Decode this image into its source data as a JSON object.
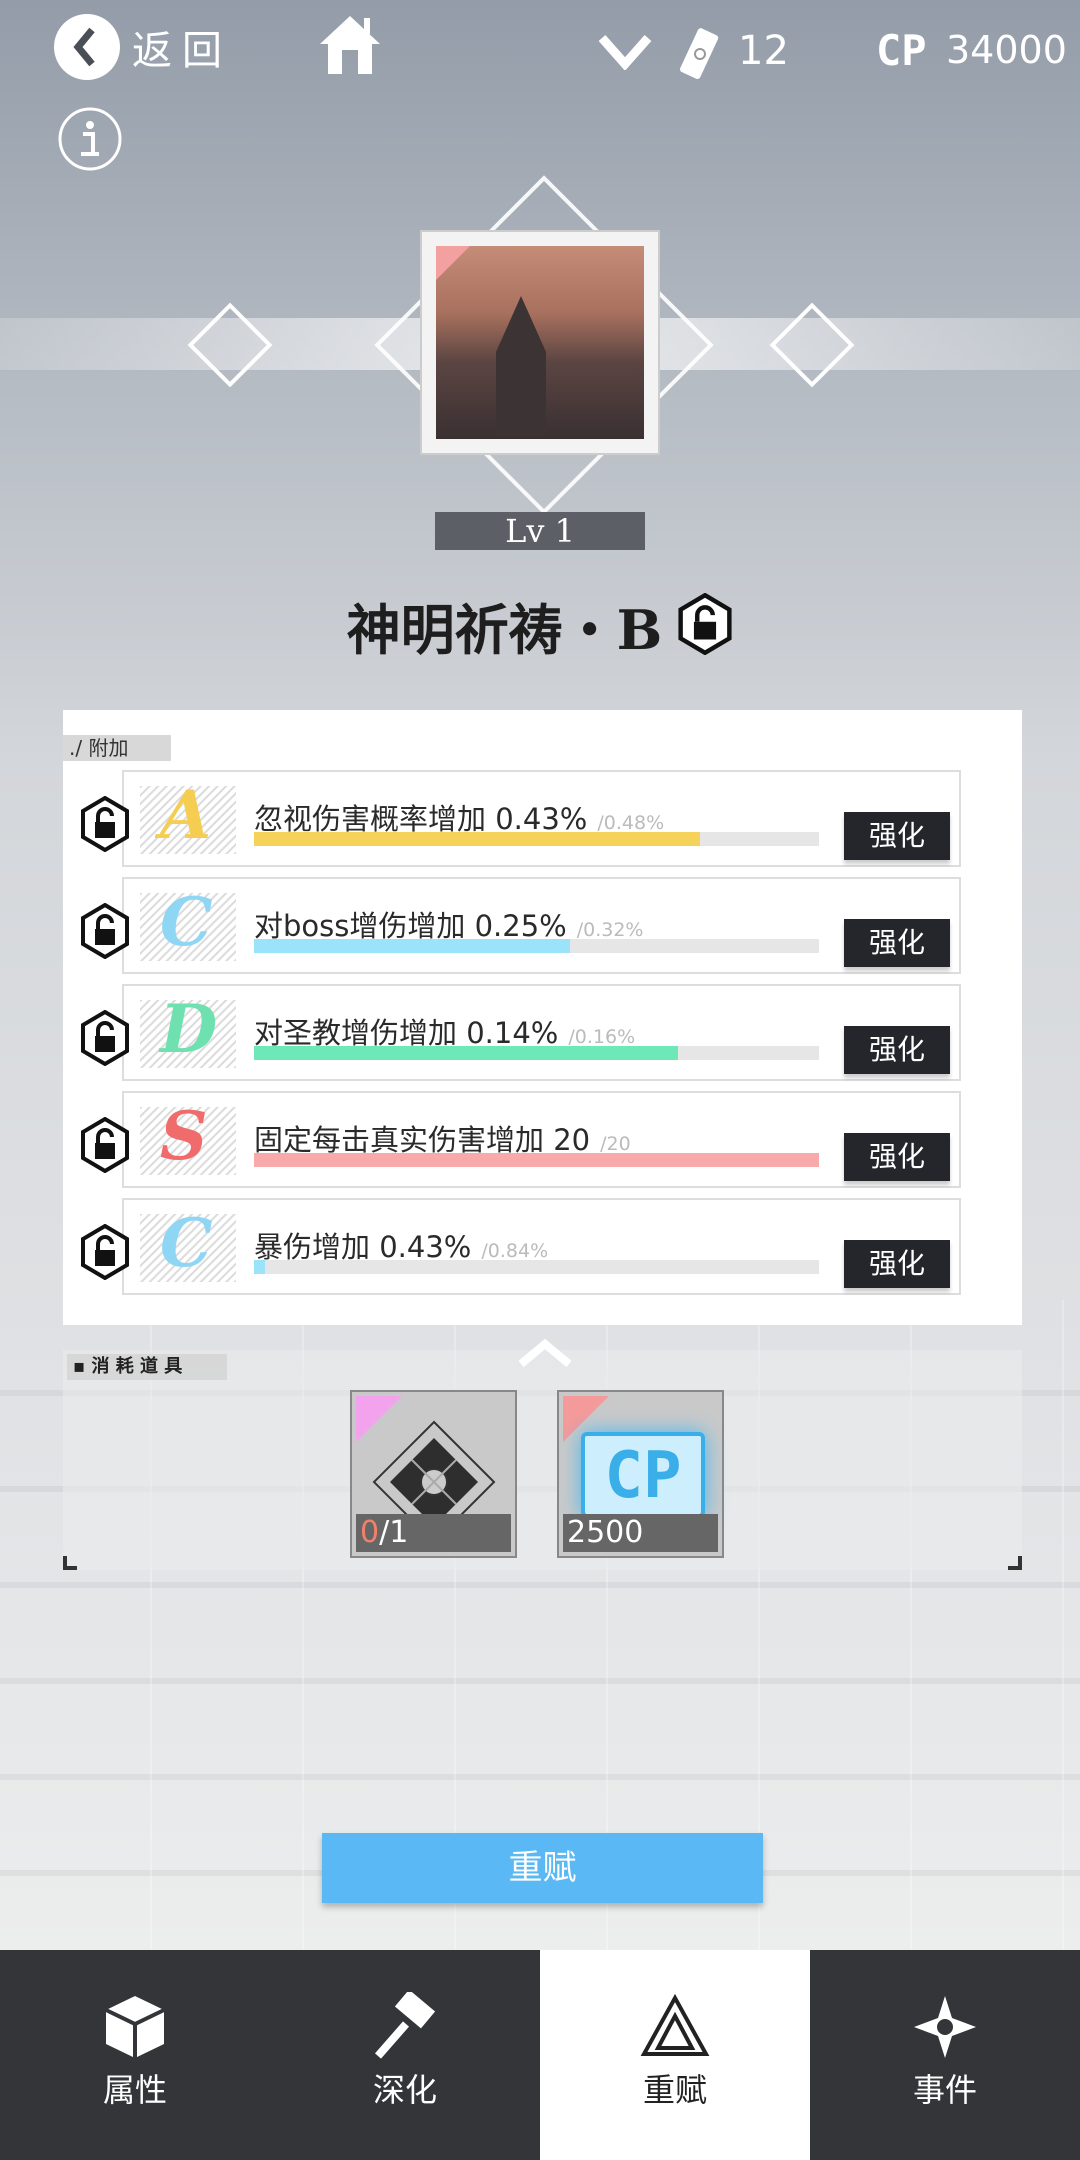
{
  "topbar": {
    "back_label": "返回",
    "tickets": "12",
    "cp_logo": "CP",
    "cp_amount": "34000"
  },
  "card": {
    "level": "Lv 1",
    "title": "神明祈祷・B"
  },
  "attach": {
    "section_label": "./ 附加",
    "rows": [
      {
        "grade": "A",
        "grade_color": "#f5cd50",
        "text": "忽视伤害概率增加 0.43%",
        "max": "/0.48%",
        "fill": 0.79,
        "bar_color": "#f5d35a",
        "button": "强化"
      },
      {
        "grade": "C",
        "grade_color": "#8fd6f5",
        "text": "对boss增伤增加 0.25%",
        "max": "/0.32%",
        "fill": 0.56,
        "bar_color": "#9be3fb",
        "button": "强化"
      },
      {
        "grade": "D",
        "grade_color": "#6fe0b0",
        "text": "对圣教增伤增加 0.14%",
        "max": "/0.16%",
        "fill": 0.75,
        "bar_color": "#6ee8b6",
        "button": "强化"
      },
      {
        "grade": "S",
        "grade_color": "#f06b6b",
        "text": "固定每击真实伤害增加 20",
        "max": "/20",
        "fill": 1.0,
        "bar_color": "#f8aaaa",
        "button": "强化"
      },
      {
        "grade": "C",
        "grade_color": "#8fd6f5",
        "text": "暴伤增加 0.43%",
        "max": "/0.84%",
        "fill": 0.02,
        "bar_color": "#9be3fb",
        "button": "强化"
      }
    ]
  },
  "consume": {
    "section_label": "消 耗 道 具",
    "items": [
      {
        "have": "0",
        "need": "/1",
        "corner_color": "#f3a3ee"
      },
      {
        "amount": "2500",
        "logo": "CP",
        "corner_color": "#f59a9a"
      }
    ]
  },
  "reset_button": "重赋",
  "nav": {
    "tabs": [
      {
        "label": "属性"
      },
      {
        "label": "深化"
      },
      {
        "label": "重赋",
        "active": true
      },
      {
        "label": "事件"
      }
    ]
  }
}
